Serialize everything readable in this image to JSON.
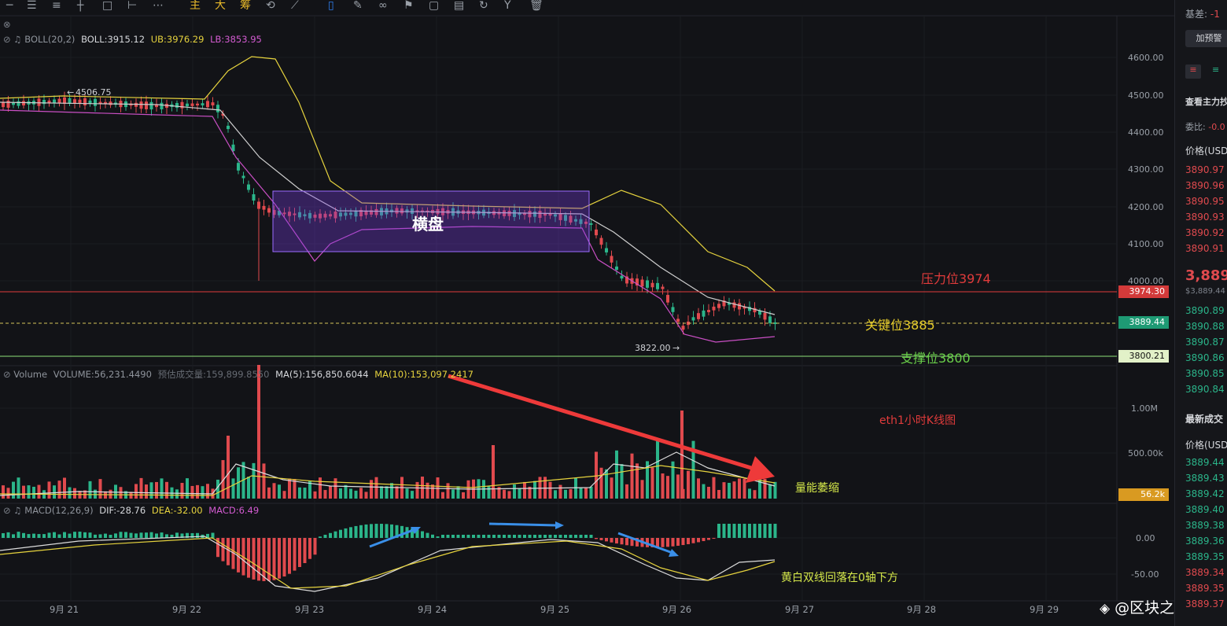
{
  "toolbar": {
    "icons": [
      "horizontal-line-icon",
      "horizontal-lines-icon",
      "menu-icon",
      "cross-icon",
      "rectangle-icon",
      "range-icon",
      "more-icon"
    ],
    "text_buttons": [
      "主",
      "大",
      "筹"
    ],
    "tool_icons": [
      "indicator-icon",
      "ruler-icon",
      "magnet-icon",
      "pencil-icon",
      "eye-icon",
      "document-icon",
      "gauge-icon",
      "split-icon",
      "chart-icon",
      "refresh-icon",
      "filter-icon",
      "trash-icon"
    ]
  },
  "boll": {
    "name": "BOLL(20,2)",
    "boll_label": "BOLL:3915.12",
    "ub_label": "UB:3976.29",
    "lb_label": "LB:3853.95",
    "high_marker": "4506.75",
    "low_marker": "3822.00",
    "price_ticks": [
      "4600.00",
      "4500.00",
      "4400.00",
      "4300.00",
      "4200.00",
      "4100.00",
      "4000.00"
    ],
    "colors": {
      "boll": "#cfcfcf",
      "ub": "#e6d33e",
      "lb": "#c94fc4"
    }
  },
  "volume": {
    "name": "Volume",
    "volume_label": "VOLUME:56,231.4490",
    "est_label": "预估成交量:159,899.8550",
    "ma5_label": "MA(5):156,850.6044",
    "ma10_label": "MA(10):153,097.2417",
    "ticks": [
      "1.00M",
      "500.00k"
    ],
    "current_label": "56.2k"
  },
  "macd": {
    "name": "MACD(12,26,9)",
    "dif_label": "DIF:-28.76",
    "dea_label": "DEA:-32.00",
    "macd_label": "MACD:6.49",
    "ticks": [
      "0.00",
      "-50.00"
    ]
  },
  "price_labels": {
    "resistance": "3974.30",
    "current": "3889.44",
    "support": "3800.21"
  },
  "annotations": {
    "consolidation": "横盘",
    "resistance": "压力位3974",
    "key_level": "关键位3885",
    "support": "支撑位3800",
    "chart_title": "eth1小时K线图",
    "volume_shrink": "量能萎缩",
    "macd_note": "黄白双线回落在0轴下方"
  },
  "dates": [
    "9月 21",
    "9月 22",
    "9月 23",
    "9月 24",
    "9月 25",
    "9月 26",
    "9月 27",
    "9月 28",
    "9月 29"
  ],
  "watermark": "@区块之钥",
  "sidebar": {
    "basis_label": "基差:",
    "basis_value": "-1",
    "alert_button": "加预警",
    "main_force_label": "查看主力抄",
    "weibi_label": "委比:",
    "weibi_value": "-0.0",
    "price_header": "价格(USD",
    "asks": [
      "3890.97",
      "3890.96",
      "3890.95",
      "3890.93",
      "3890.92",
      "3890.91"
    ],
    "last_price": "3,889.",
    "mark_price": "$3,889.44",
    "bids": [
      "3890.89",
      "3890.88",
      "3890.87",
      "3890.86",
      "3890.85",
      "3890.84"
    ],
    "latest_trades_label": "最新成交",
    "trades_price_header": "价格(USD",
    "trades": [
      {
        "p": "3889.44",
        "c": "green"
      },
      {
        "p": "3889.43",
        "c": "green"
      },
      {
        "p": "3889.42",
        "c": "green"
      },
      {
        "p": "3889.40",
        "c": "green"
      },
      {
        "p": "3889.38",
        "c": "green"
      },
      {
        "p": "3889.36",
        "c": "green"
      },
      {
        "p": "3889.35",
        "c": "green"
      },
      {
        "p": "3889.34",
        "c": "red"
      },
      {
        "p": "3889.35",
        "c": "red"
      },
      {
        "p": "3889.37",
        "c": "red"
      }
    ]
  }
}
